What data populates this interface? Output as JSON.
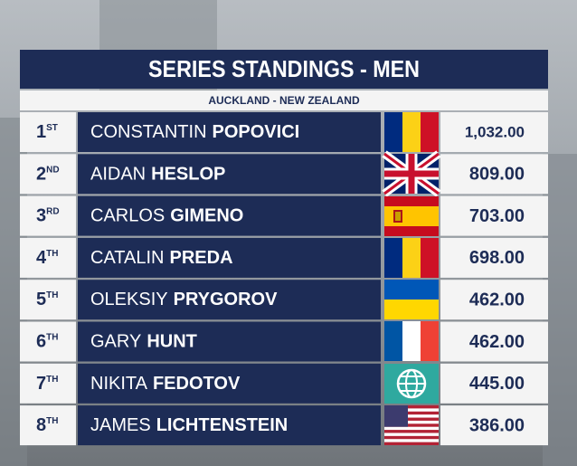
{
  "header": {
    "title": "SERIES STANDINGS - MEN",
    "subtitle": "AUCKLAND - NEW ZEALAND"
  },
  "table": {
    "rows": [
      {
        "rank": "1",
        "suffix": "ST",
        "first_name": "CONSTANTIN",
        "last_name": "POPOVICI",
        "points": "1,032.00"
      },
      {
        "rank": "2",
        "suffix": "ND",
        "first_name": "AIDAN",
        "last_name": "HESLOP",
        "points": "809.00"
      },
      {
        "rank": "3",
        "suffix": "RD",
        "first_name": "CARLOS",
        "last_name": "GIMENO",
        "points": "703.00"
      },
      {
        "rank": "4",
        "suffix": "TH",
        "first_name": "CATALIN",
        "last_name": "PREDA",
        "points": "698.00"
      },
      {
        "rank": "5",
        "suffix": "TH",
        "first_name": "OLEKSIY",
        "last_name": "PRYGOROV",
        "points": "462.00"
      },
      {
        "rank": "6",
        "suffix": "TH",
        "first_name": "GARY",
        "last_name": "HUNT",
        "points": "462.00"
      },
      {
        "rank": "7",
        "suffix": "TH",
        "first_name": "NIKITA",
        "last_name": "FEDOTOV",
        "points": "445.00"
      },
      {
        "rank": "8",
        "suffix": "TH",
        "first_name": "JAMES",
        "last_name": "LICHTENSTEIN",
        "points": "386.00"
      }
    ]
  }
}
